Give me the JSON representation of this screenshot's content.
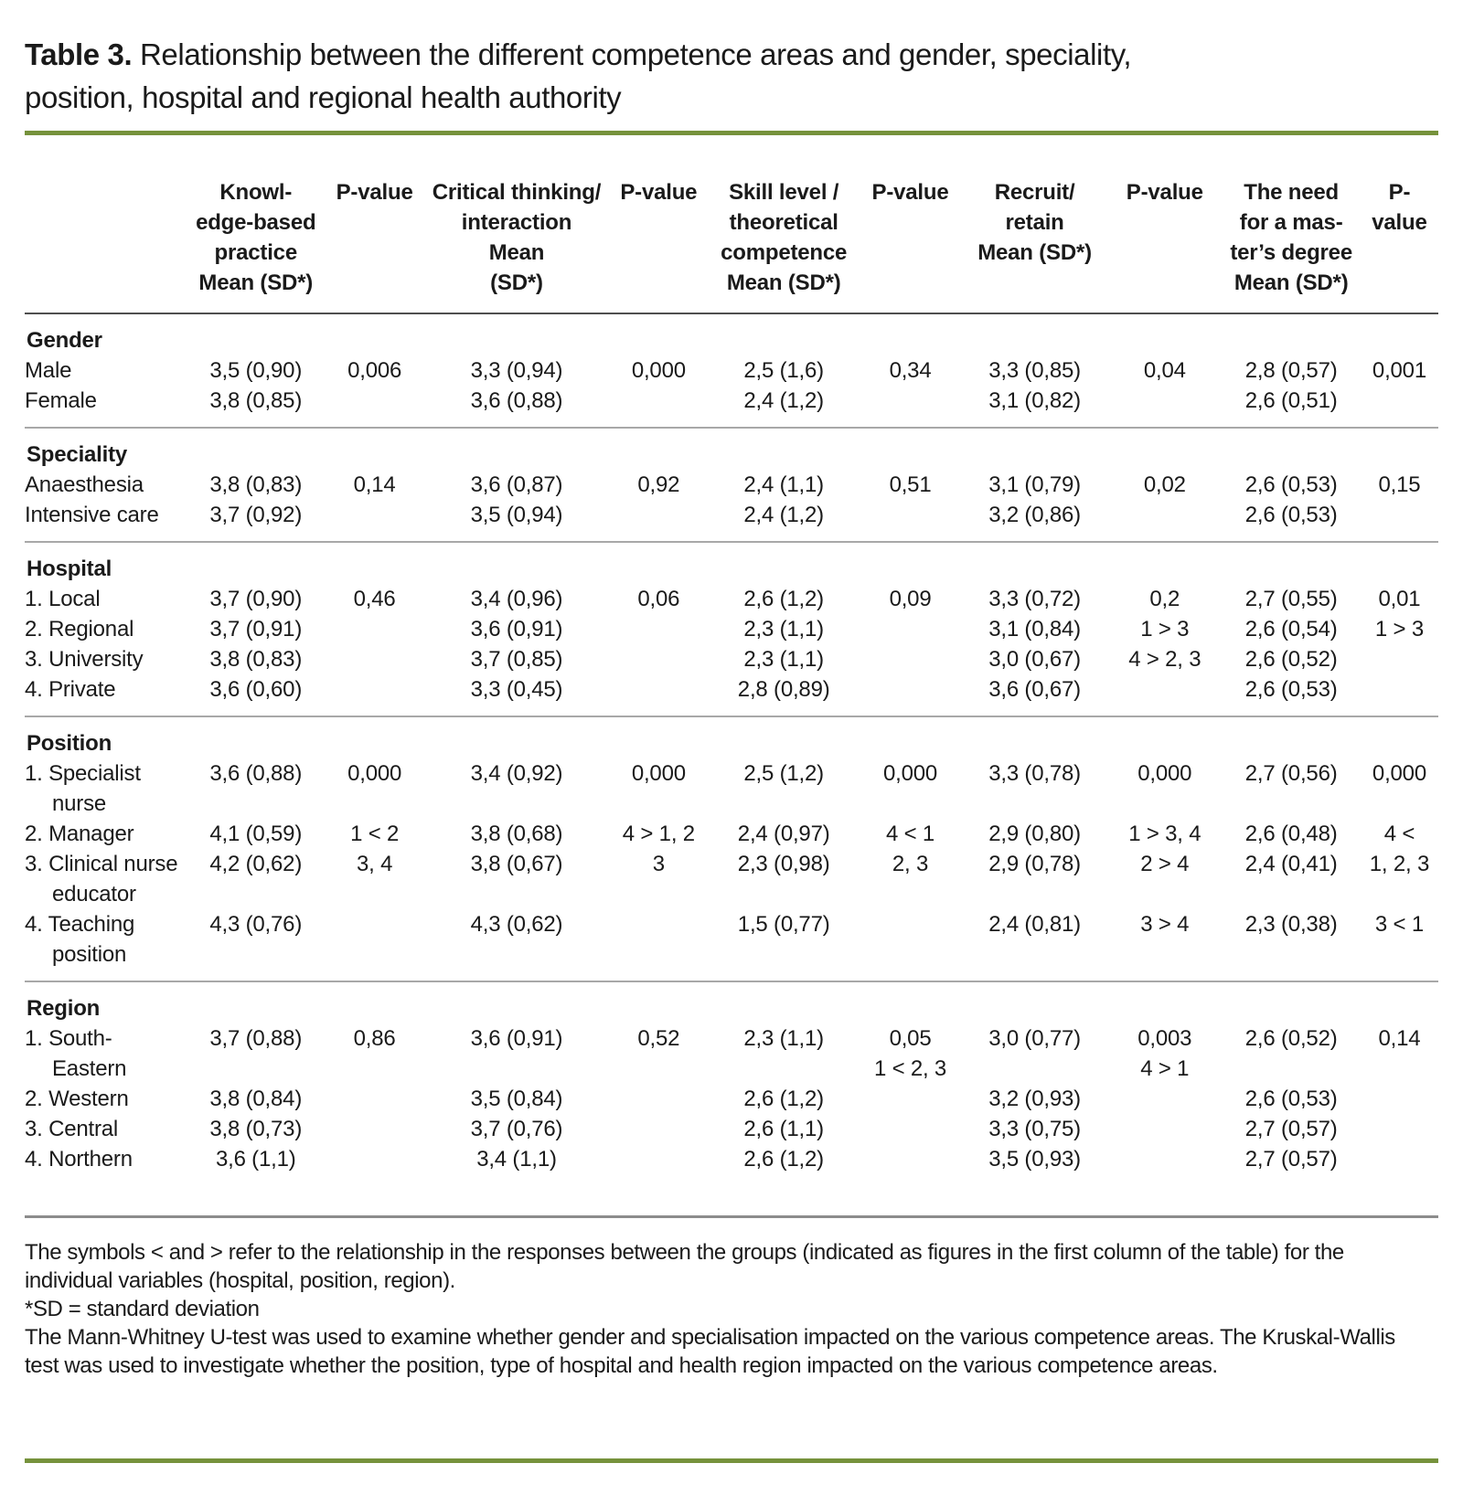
{
  "colors": {
    "accent_green": "#76923C",
    "header_line": "#4f4f4f",
    "section_line": "#a8a8a8"
  },
  "page": {
    "title_label": "Table 3.",
    "title_text": " Relationship between the different competence areas and gender, speciality,\nposition, hospital and regional health authority"
  },
  "table": {
    "column_headers": [
      "Knowl-\nedge-based\npractice\nMean (SD*)",
      "P-value",
      "Critical thinking/\ninteraction\nMean\n(SD*)",
      "P-value",
      "Skill level /\ntheoretical\ncompetence\nMean (SD*)",
      "P-value",
      "Recruit/\nretain\nMean (SD*)",
      "P-value",
      "The need\nfor a mas-\nter’s degree\nMean (SD*)",
      "P-value"
    ],
    "sections": [
      {
        "title": "Gender",
        "pad_extra": false,
        "rows": [
          {
            "label": "Male",
            "cells": [
              "3,5 (0,90)",
              "0,006",
              "3,3 (0,94)",
              "0,000",
              "2,5 (1,6)",
              "0,34",
              "3,3 (0,85)",
              "0,04",
              "2,8 (0,57)",
              "0,001"
            ]
          },
          {
            "label": "Female",
            "cells": [
              "3,8 (0,85)",
              "",
              "3,6 (0,88)",
              "",
              "2,4 (1,2)",
              "",
              "3,1 (0,82)",
              "",
              "2,6 (0,51)",
              ""
            ]
          }
        ]
      },
      {
        "title": "Speciality",
        "pad_extra": false,
        "rows": [
          {
            "label": "Anaesthesia",
            "cells": [
              "3,8 (0,83)",
              "0,14",
              "3,6 (0,87)",
              "0,92",
              "2,4 (1,1)",
              "0,51",
              "3,1 (0,79)",
              "0,02",
              "2,6 (0,53)",
              "0,15"
            ]
          },
          {
            "label": "Intensive care",
            "cells": [
              "3,7 (0,92)",
              "",
              "3,5 (0,94)",
              "",
              "2,4 (1,2)",
              "",
              "3,2 (0,86)",
              "",
              "2,6 (0,53)",
              ""
            ]
          }
        ]
      },
      {
        "title": "Hospital",
        "pad_extra": false,
        "rows": [
          {
            "label": "1. Local",
            "cells": [
              "3,7 (0,90)",
              "0,46",
              "3,4 (0,96)",
              "0,06",
              "2,6 (1,2)",
              "0,09",
              "3,3 (0,72)",
              "0,2",
              "2,7 (0,55)",
              "0,01"
            ]
          },
          {
            "label": "2. Regional",
            "cells": [
              "3,7 (0,91)",
              "",
              "3,6 (0,91)",
              "",
              "2,3 (1,1)",
              "",
              "3,1 (0,84)",
              "1 > 3",
              "2,6 (0,54)",
              "1 > 3"
            ]
          },
          {
            "label": "3. University",
            "cells": [
              "3,8 (0,83)",
              "",
              "3,7 (0,85)",
              "",
              "2,3 (1,1)",
              "",
              "3,0 (0,67)",
              "4 > 2, 3",
              "2,6 (0,52)",
              ""
            ]
          },
          {
            "label": "4. Private",
            "cells": [
              "3,6 (0,60)",
              "",
              "3,3 (0,45)",
              "",
              "2,8 (0,89)",
              "",
              "3,6 (0,67)",
              "",
              "2,6 (0,53)",
              ""
            ]
          }
        ]
      },
      {
        "title": "Position",
        "pad_extra": false,
        "rows": [
          {
            "label": "1. Specialist\nnurse",
            "cells": [
              "3,6 (0,88)",
              "0,000",
              "3,4 (0,92)",
              "0,000",
              "2,5 (1,2)",
              "0,000",
              "3,3 (0,78)",
              "0,000",
              "2,7 (0,56)",
              "0,000"
            ]
          },
          {
            "label": "2. Manager",
            "cells": [
              "4,1 (0,59)",
              "1 < 2",
              "3,8 (0,68)",
              "4 > 1, 2",
              "2,4 (0,97)",
              "4 < 1",
              "2,9 (0,80)",
              "1 > 3, 4",
              "2,6 (0,48)",
              "4 <"
            ]
          },
          {
            "label": "3. Clinical nurse\neducator",
            "cells": [
              "4,2 (0,62)",
              "3, 4",
              "3,8 (0,67)",
              "3",
              "2,3 (0,98)",
              "2, 3",
              "2,9 (0,78)",
              "2 > 4",
              "2,4 (0,41)",
              "1, 2, 3"
            ]
          },
          {
            "label": "4. Teaching\nposition",
            "cells": [
              "4,3 (0,76)",
              "",
              "4,3 (0,62)",
              "",
              "1,5 (0,77)",
              "",
              "2,4 (0,81)",
              "3 > 4",
              "2,3 (0,38)",
              "3 < 1"
            ]
          }
        ]
      },
      {
        "title": "Region",
        "pad_extra": true,
        "rows": [
          {
            "label": "1. South-\nEastern",
            "cells": [
              "3,7 (0,88)",
              "0,86",
              "3,6 (0,91)",
              "0,52",
              "2,3 (1,1)",
              "0,05\n1 < 2, 3",
              "3,0 (0,77)",
              "0,003\n4 > 1",
              "2,6 (0,52)",
              "0,14"
            ]
          },
          {
            "label": "2. Western",
            "cells": [
              "3,8 (0,84)",
              "",
              "3,5 (0,84)",
              "",
              "2,6 (1,2)",
              "",
              "3,2 (0,93)",
              "",
              "2,6 (0,53)",
              ""
            ]
          },
          {
            "label": "3. Central",
            "cells": [
              "3,8 (0,73)",
              "",
              "3,7 (0,76)",
              "",
              "2,6 (1,1)",
              "",
              "3,3 (0,75)",
              "",
              "2,7 (0,57)",
              ""
            ]
          },
          {
            "label": "4. Northern",
            "cells": [
              "3,6 (1,1)",
              "",
              "3,4 (1,1)",
              "",
              "2,6 (1,2)",
              "",
              "3,5 (0,93)",
              "",
              "2,7 (0,57)",
              ""
            ]
          }
        ]
      }
    ]
  },
  "footnotes": [
    "The symbols < and > refer to the relationship in the responses between the groups (indicated as figures in the first column of the table) for the individual variables (hospital, position, region).",
    "*SD = standard deviation",
    "The Mann-Whitney U-test was used to examine whether gender and specialisation impacted on the various competence areas. The Kruskal-Wallis test was used to investigate whether the position, type of hospital and health region impacted on the various competence areas."
  ]
}
